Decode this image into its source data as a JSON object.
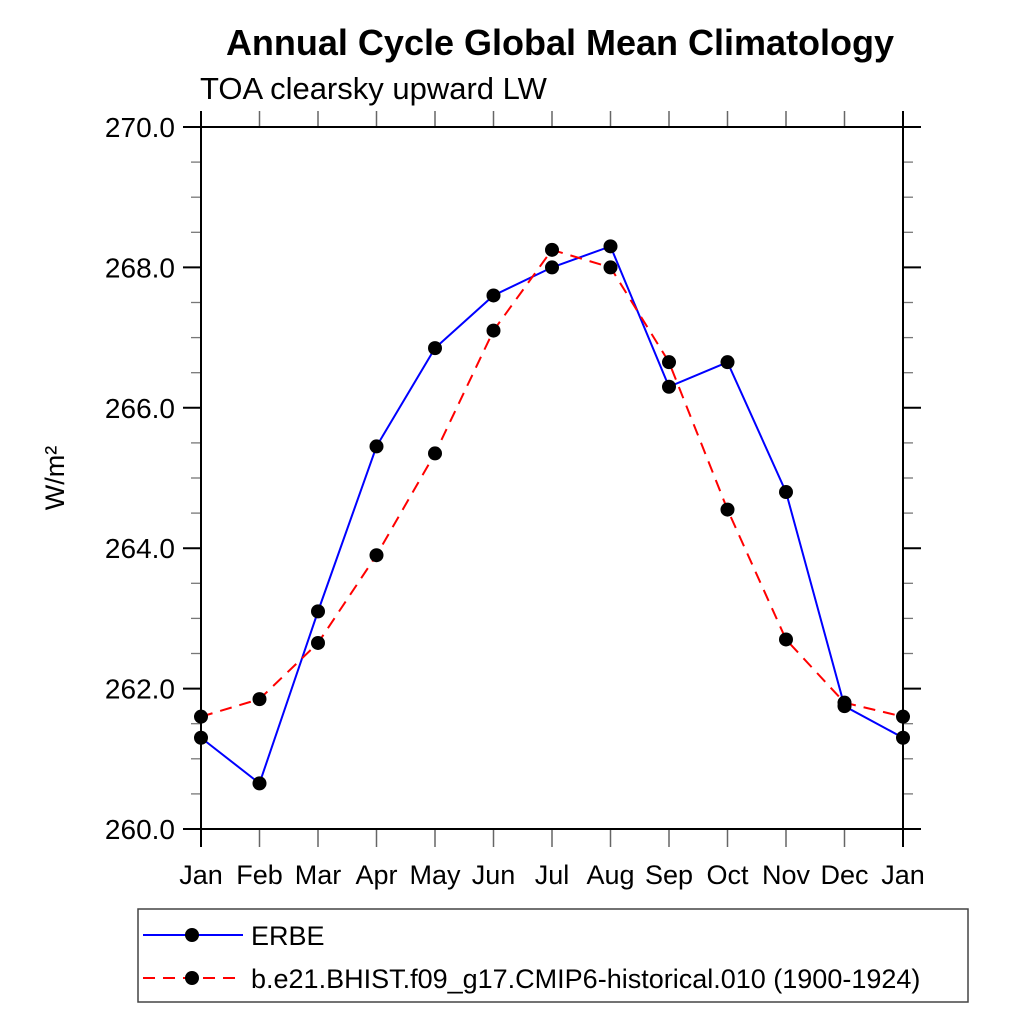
{
  "page": {
    "background": "#ffffff"
  },
  "chart_data": {
    "type": "line",
    "title": "Annual Cycle Global Mean Climatology",
    "subtitle": "TOA clearsky upward LW",
    "ylabel": "W/m²",
    "xlabel": "",
    "categories": [
      "Jan",
      "Feb",
      "Mar",
      "Apr",
      "May",
      "Jun",
      "Jul",
      "Aug",
      "Sep",
      "Oct",
      "Nov",
      "Dec",
      "Jan"
    ],
    "series": [
      {
        "name": "ERBE",
        "color": "#0000ff",
        "line_style": "solid",
        "marker": "filled-circle",
        "marker_color": "#000000",
        "values": [
          261.3,
          260.65,
          263.1,
          265.45,
          266.85,
          267.6,
          268.0,
          268.3,
          266.3,
          266.65,
          264.8,
          261.75,
          261.3
        ]
      },
      {
        "name": "b.e21.BHIST.f09_g17.CMIP6-historical.010 (1900-1924)",
        "color": "#ff0000",
        "line_style": "dashed",
        "marker": "filled-circle",
        "marker_color": "#000000",
        "values": [
          261.6,
          261.85,
          262.65,
          263.9,
          265.35,
          267.1,
          268.25,
          268.0,
          266.65,
          264.55,
          262.7,
          261.8,
          261.6
        ]
      }
    ],
    "ylim": [
      260.0,
      270.0
    ],
    "ytick_major": 2.0,
    "ytick_minor": 0.5,
    "ytick_label_decimals": 1,
    "grid": false,
    "legend_position": "bottom-left-box"
  }
}
